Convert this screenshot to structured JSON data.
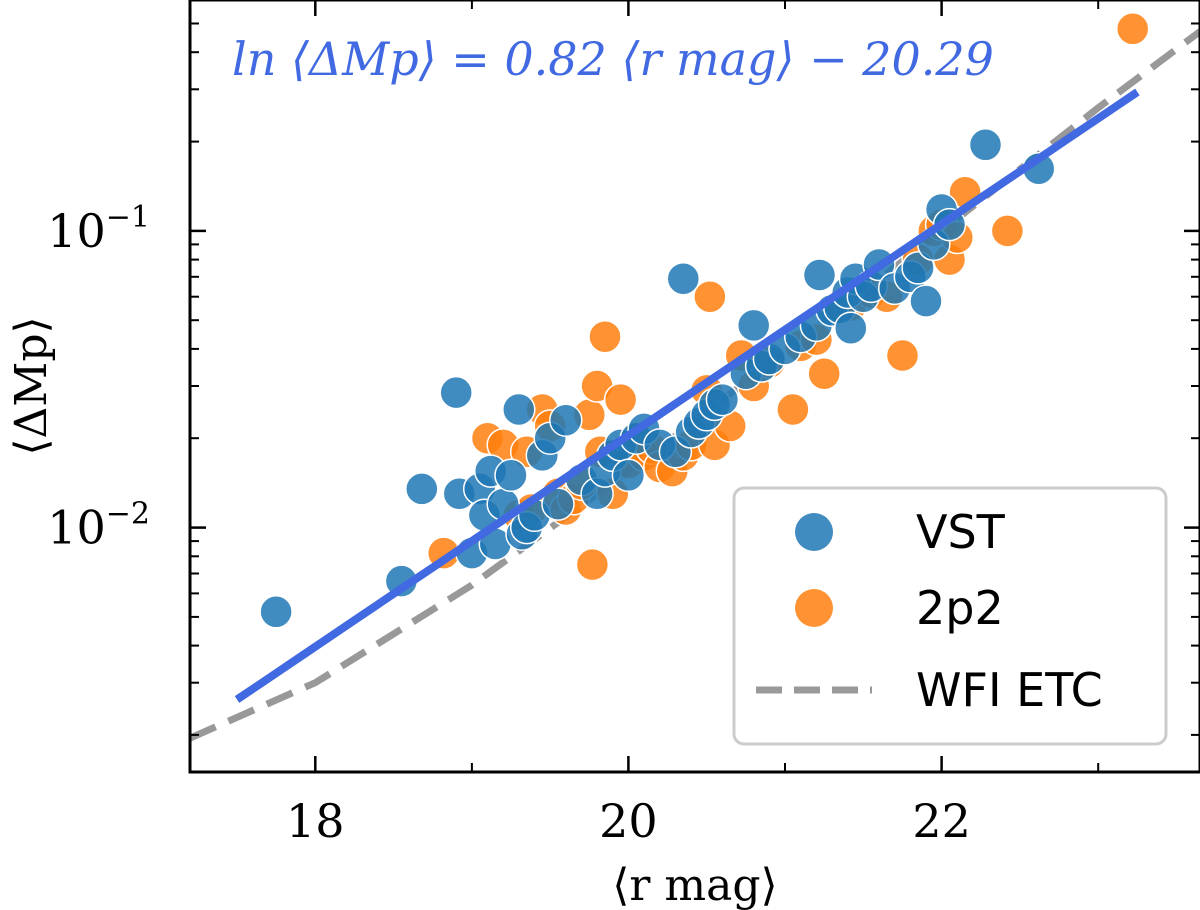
{
  "chart_data": {
    "type": "scatter",
    "title": "",
    "xlabel": "⟨r mag⟩",
    "ylabel": "⟨ΔMp⟩",
    "xlim": [
      17.2,
      23.65
    ],
    "ylim": [
      0.0015,
      0.6
    ],
    "yscale": "log",
    "x_ticks": [
      18,
      20,
      22
    ],
    "x_tick_labels": [
      "18",
      "20",
      "22"
    ],
    "y_ticks": [
      0.01,
      0.1
    ],
    "y_tick_labels": [
      {
        "base": "10",
        "exp": "−2"
      },
      {
        "base": "10",
        "exp": "−1"
      }
    ],
    "grid": false,
    "legend_position": "lower-right",
    "annotation": {
      "text": "ln ⟨ΔMp⟩ = 0.82 ⟨r mag⟩ − 20.29",
      "color": "#4169E1"
    },
    "series": [
      {
        "name": "VST",
        "kind": "scatter",
        "color": "#1f77b4",
        "points": [
          [
            17.75,
            0.0052
          ],
          [
            18.55,
            0.0066
          ],
          [
            18.68,
            0.0135
          ],
          [
            18.9,
            0.0285
          ],
          [
            18.92,
            0.013
          ],
          [
            19.0,
            0.0082
          ],
          [
            19.05,
            0.0135
          ],
          [
            19.08,
            0.011
          ],
          [
            19.12,
            0.0155
          ],
          [
            19.15,
            0.0088
          ],
          [
            19.2,
            0.012
          ],
          [
            19.25,
            0.015
          ],
          [
            19.3,
            0.025
          ],
          [
            19.32,
            0.0095
          ],
          [
            19.35,
            0.01
          ],
          [
            19.4,
            0.011
          ],
          [
            19.45,
            0.0175
          ],
          [
            19.5,
            0.02
          ],
          [
            19.55,
            0.012
          ],
          [
            19.6,
            0.023
          ],
          [
            19.7,
            0.0145
          ],
          [
            19.8,
            0.013
          ],
          [
            19.85,
            0.0155
          ],
          [
            19.9,
            0.0175
          ],
          [
            19.95,
            0.019
          ],
          [
            20.0,
            0.015
          ],
          [
            20.05,
            0.02
          ],
          [
            20.1,
            0.0215
          ],
          [
            20.2,
            0.019
          ],
          [
            20.3,
            0.018
          ],
          [
            20.35,
            0.069
          ],
          [
            20.4,
            0.021
          ],
          [
            20.45,
            0.0225
          ],
          [
            20.5,
            0.024
          ],
          [
            20.55,
            0.026
          ],
          [
            20.6,
            0.027
          ],
          [
            20.75,
            0.033
          ],
          [
            20.8,
            0.048
          ],
          [
            20.85,
            0.035
          ],
          [
            20.9,
            0.037
          ],
          [
            21.0,
            0.04
          ],
          [
            21.1,
            0.044
          ],
          [
            21.2,
            0.048
          ],
          [
            21.22,
            0.071
          ],
          [
            21.3,
            0.054
          ],
          [
            21.35,
            0.055
          ],
          [
            21.4,
            0.062
          ],
          [
            21.42,
            0.047
          ],
          [
            21.45,
            0.069
          ],
          [
            21.5,
            0.06
          ],
          [
            21.55,
            0.065
          ],
          [
            21.6,
            0.077
          ],
          [
            21.7,
            0.064
          ],
          [
            21.8,
            0.07
          ],
          [
            21.85,
            0.075
          ],
          [
            21.9,
            0.058
          ],
          [
            21.95,
            0.09
          ],
          [
            22.0,
            0.118
          ],
          [
            22.05,
            0.105
          ],
          [
            22.28,
            0.195
          ],
          [
            22.62,
            0.162
          ]
        ]
      },
      {
        "name": "2p2",
        "kind": "scatter",
        "color": "#ff7f0e",
        "points": [
          [
            18.82,
            0.0082
          ],
          [
            19.1,
            0.02
          ],
          [
            19.2,
            0.019
          ],
          [
            19.3,
            0.011
          ],
          [
            19.35,
            0.018
          ],
          [
            19.38,
            0.0115
          ],
          [
            19.45,
            0.025
          ],
          [
            19.5,
            0.022
          ],
          [
            19.55,
            0.013
          ],
          [
            19.6,
            0.0115
          ],
          [
            19.65,
            0.0125
          ],
          [
            19.7,
            0.014
          ],
          [
            19.75,
            0.024
          ],
          [
            19.77,
            0.0075
          ],
          [
            19.8,
            0.03
          ],
          [
            19.82,
            0.018
          ],
          [
            19.85,
            0.044
          ],
          [
            19.9,
            0.013
          ],
          [
            19.95,
            0.027
          ],
          [
            20.0,
            0.0165
          ],
          [
            20.05,
            0.02
          ],
          [
            20.1,
            0.0175
          ],
          [
            20.15,
            0.0185
          ],
          [
            20.2,
            0.016
          ],
          [
            20.28,
            0.0155
          ],
          [
            20.35,
            0.0175
          ],
          [
            20.4,
            0.019
          ],
          [
            20.5,
            0.029
          ],
          [
            20.52,
            0.06
          ],
          [
            20.55,
            0.019
          ],
          [
            20.65,
            0.022
          ],
          [
            20.72,
            0.038
          ],
          [
            20.8,
            0.03
          ],
          [
            20.9,
            0.036
          ],
          [
            21.05,
            0.025
          ],
          [
            21.1,
            0.041
          ],
          [
            21.2,
            0.043
          ],
          [
            21.25,
            0.033
          ],
          [
            21.35,
            0.055
          ],
          [
            21.42,
            0.056
          ],
          [
            21.55,
            0.062
          ],
          [
            21.65,
            0.06
          ],
          [
            21.75,
            0.038
          ],
          [
            21.85,
            0.08
          ],
          [
            21.95,
            0.1
          ],
          [
            22.0,
            0.105
          ],
          [
            22.05,
            0.08
          ],
          [
            22.1,
            0.095
          ],
          [
            22.15,
            0.135
          ],
          [
            22.42,
            0.1
          ],
          [
            23.22,
            0.48
          ]
        ]
      },
      {
        "name": "fit",
        "kind": "line",
        "color": "#4169E1",
        "x_range": [
          17.5,
          23.25
        ],
        "slope": 0.82,
        "intercept": -20.29
      },
      {
        "name": "WFI ETC",
        "kind": "dashed-line",
        "color": "#999999",
        "points": [
          [
            17.2,
            0.00195
          ],
          [
            18.0,
            0.003
          ],
          [
            19.0,
            0.0064
          ],
          [
            20.0,
            0.0155
          ],
          [
            21.0,
            0.039
          ],
          [
            22.0,
            0.1
          ],
          [
            23.0,
            0.26
          ],
          [
            23.65,
            0.47
          ]
        ]
      }
    ],
    "legend": [
      {
        "label": "VST",
        "kind": "marker",
        "color": "#1f77b4"
      },
      {
        "label": "2p2",
        "kind": "marker",
        "color": "#ff7f0e"
      },
      {
        "label": "WFI ETC",
        "kind": "dashed",
        "color": "#999999"
      }
    ]
  }
}
